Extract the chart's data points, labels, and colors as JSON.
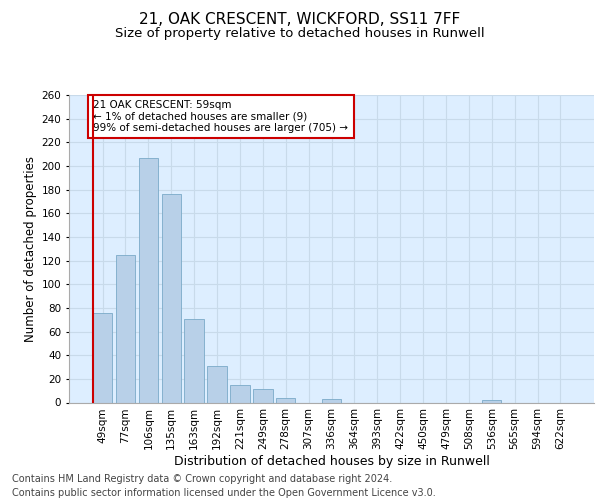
{
  "title": "21, OAK CRESCENT, WICKFORD, SS11 7FF",
  "subtitle": "Size of property relative to detached houses in Runwell",
  "xlabel": "Distribution of detached houses by size in Runwell",
  "ylabel": "Number of detached properties",
  "categories": [
    "49sqm",
    "77sqm",
    "106sqm",
    "135sqm",
    "163sqm",
    "192sqm",
    "221sqm",
    "249sqm",
    "278sqm",
    "307sqm",
    "336sqm",
    "364sqm",
    "393sqm",
    "422sqm",
    "450sqm",
    "479sqm",
    "508sqm",
    "536sqm",
    "565sqm",
    "594sqm",
    "622sqm"
  ],
  "values": [
    76,
    125,
    207,
    176,
    71,
    31,
    15,
    11,
    4,
    0,
    3,
    0,
    0,
    0,
    0,
    0,
    0,
    2,
    0,
    0,
    0
  ],
  "bar_color": "#b8d0e8",
  "bar_edge_color": "#7aaac8",
  "highlight_color": "#cc0000",
  "annotation_text": "21 OAK CRESCENT: 59sqm\n← 1% of detached houses are smaller (9)\n99% of semi-detached houses are larger (705) →",
  "annotation_box_color": "#ffffff",
  "annotation_box_edge": "#cc0000",
  "ylim": [
    0,
    260
  ],
  "yticks": [
    0,
    20,
    40,
    60,
    80,
    100,
    120,
    140,
    160,
    180,
    200,
    220,
    240,
    260
  ],
  "grid_color": "#c8daea",
  "bg_color": "#ddeeff",
  "footer": "Contains HM Land Registry data © Crown copyright and database right 2024.\nContains public sector information licensed under the Open Government Licence v3.0.",
  "title_fontsize": 11,
  "subtitle_fontsize": 9.5,
  "xlabel_fontsize": 9,
  "ylabel_fontsize": 8.5,
  "tick_fontsize": 7.5,
  "footer_fontsize": 7,
  "annotation_fontsize": 7.5
}
